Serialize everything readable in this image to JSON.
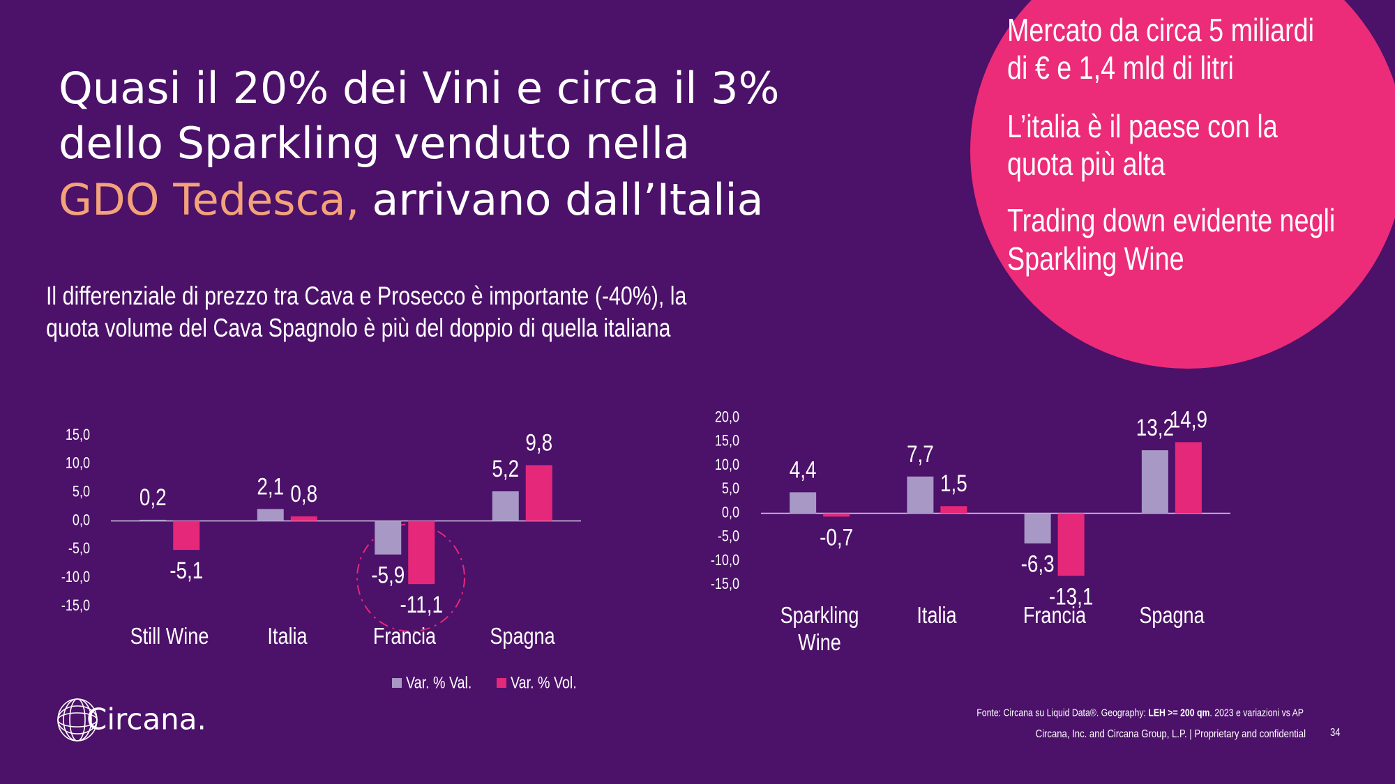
{
  "title": [
    "Quasi il 20% dei Vini e circa il 3%",
    "dello Sparkling venduto nella",
    "GDO Tedesca,",
    "arrivano dall’Italia"
  ],
  "subtitle": [
    "Il differenziale di prezzo tra Cava e Prosecco  è importante (-40%), la",
    "quota volume del Cava Spagnolo è più del doppio di quella italiana"
  ],
  "bullets": [
    [
      "Mercato da circa 5 miliardi",
      "di € e 1,4 mld di litri"
    ],
    [
      "L’italia è il paese con la",
      "quota più alta"
    ],
    [
      "Trading down evidente negli",
      "Sparkling Wine"
    ]
  ],
  "source": [
    "Fonte: Circana su Liquid Data®. Geography: ",
    "LEH >= 200 qm",
    ". 2023 e variazioni vs AP"
  ],
  "copyright": "Circana, Inc. and Circana Group, L.P. |  Proprietary and confidential",
  "page_number": "34",
  "logo": "Circana.",
  "chart_data": [
    {
      "type": "bar",
      "legend": true,
      "categories": [
        "Still Wine",
        "Italia",
        "Francia",
        "Spagna"
      ],
      "series": [
        {
          "name": "Var. % Val.",
          "color": "#a898c6",
          "values": [
            0.2,
            2.1,
            -5.9,
            5.2
          ],
          "value_labels": [
            "0,2",
            "2,1",
            "-5,9",
            "5,2"
          ]
        },
        {
          "name": "Var. % Vol.",
          "color": "#e6287a",
          "values": [
            -5.1,
            0.8,
            -11.1,
            9.8
          ],
          "value_labels": [
            "-5,1",
            "0,8",
            "-11,1",
            "9,8"
          ]
        }
      ],
      "ylim": [
        -15,
        15
      ],
      "yticks": [
        {
          "value": 15,
          "label": "15,0"
        },
        {
          "value": 10,
          "label": "10,0"
        },
        {
          "value": 5,
          "label": "5,0"
        },
        {
          "value": 0,
          "label": "0,0"
        },
        {
          "value": -5,
          "label": "-5,0"
        },
        {
          "value": -10,
          "label": "-10,0"
        },
        {
          "value": -15,
          "label": "-15,0"
        }
      ]
    },
    {
      "type": "bar",
      "legend": false,
      "categories": [
        "Sparkling Wine",
        "Italia",
        "Francia",
        "Spagna"
      ],
      "series": [
        {
          "name": "Var. % Val.",
          "color": "#a898c6",
          "values": [
            4.4,
            7.7,
            -6.3,
            13.2
          ],
          "value_labels": [
            "4,4",
            "7,7",
            "-6,3",
            "13,2"
          ]
        },
        {
          "name": "Var. % Vol.",
          "color": "#e6287a",
          "values": [
            -0.7,
            1.5,
            -13.1,
            14.9
          ],
          "value_labels": [
            "-0,7",
            "1,5",
            "-13,1",
            "14,9"
          ]
        }
      ],
      "ylim": [
        -15,
        20
      ],
      "yticks": [
        {
          "value": 20,
          "label": "20,0"
        },
        {
          "value": 15,
          "label": "15,0"
        },
        {
          "value": 10,
          "label": "10,0"
        },
        {
          "value": 5,
          "label": "5,0"
        },
        {
          "value": 0,
          "label": "0,0"
        },
        {
          "value": -5,
          "label": "-5,0"
        },
        {
          "value": -10,
          "label": "-10,0"
        },
        {
          "value": -15,
          "label": "-15,0"
        }
      ]
    }
  ]
}
